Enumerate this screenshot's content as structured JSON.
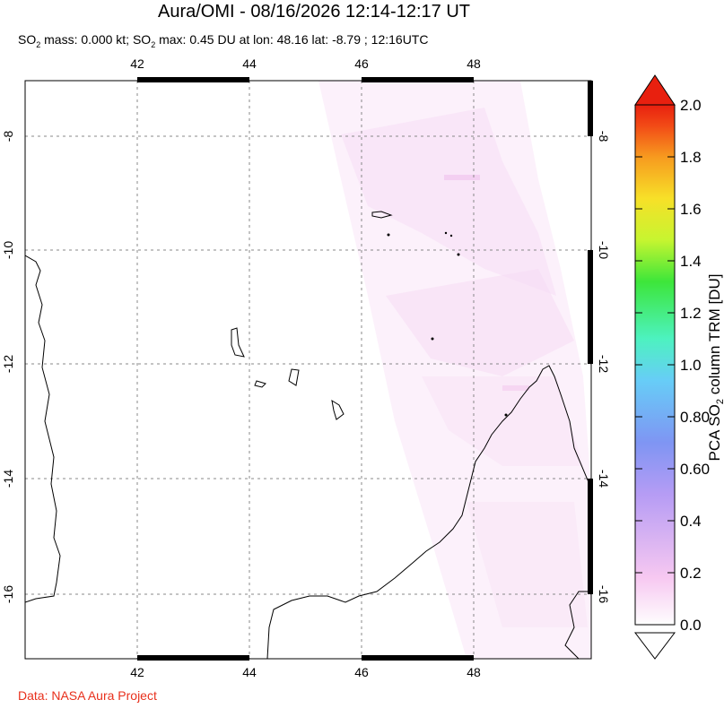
{
  "title": "Aura/OMI - 08/16/2026 12:14-12:17 UT",
  "subtitle": {
    "prefix": "SO",
    "sub": "2",
    "text1": " mass: 0.000 kt; SO",
    "sub2": "2",
    "text2": " max: 0.45 DU at lon: 48.16 lat: -8.79 ; 12:16UTC"
  },
  "credit": "Data: NASA Aura Project",
  "map": {
    "lon_ticks": [
      "42",
      "44",
      "46",
      "48"
    ],
    "lat_ticks": [
      "-8",
      "-10",
      "-12",
      "-14",
      "-16"
    ],
    "lon_range": [
      40,
      50
    ],
    "lat_range": [
      -7,
      -17.3
    ],
    "grid": true
  },
  "colorbar": {
    "title_main": "PCA SO",
    "title_sub": "2",
    "title_rest": " column TRM [DU]",
    "labels": [
      "2.0",
      "1.8",
      "1.6",
      "1.4",
      "1.2",
      "1.0",
      "0.80",
      "0.60",
      "0.4",
      "0.2",
      "0.0"
    ],
    "range": [
      0.0,
      2.0
    ],
    "colors": [
      "#fefefe",
      "#f7c8f1",
      "#b69cf4",
      "#7f95f3",
      "#67cdf7",
      "#4df2c0",
      "#3de63a",
      "#c7f530",
      "#f7e028",
      "#f79a1f",
      "#f24a16",
      "#e8200f"
    ]
  }
}
